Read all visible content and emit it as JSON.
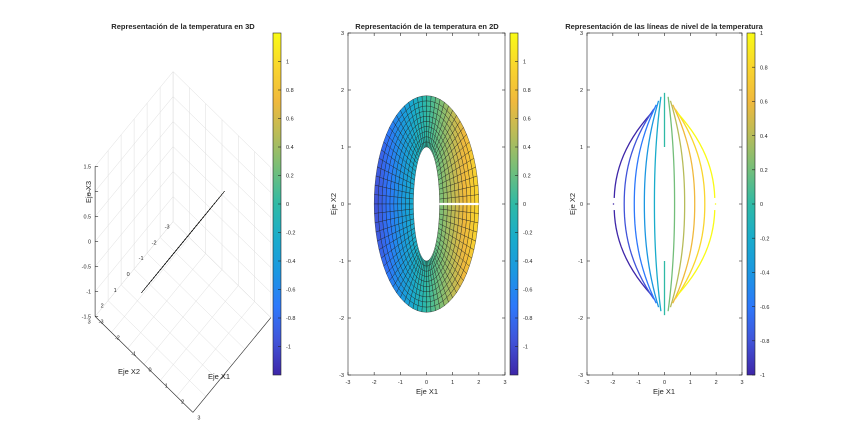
{
  "colors": {
    "axis": "#262626",
    "grid": "#dcdcdc",
    "mesh": "#1a1a1a",
    "colormap": [
      "#3e26a8",
      "#4154d9",
      "#2d78fb",
      "#1b97e1",
      "#1aaccb",
      "#2fbaa5",
      "#73be7a",
      "#b7bc59",
      "#f0b93d",
      "#f9d52e",
      "#f9fb15"
    ]
  },
  "chart_data": [
    {
      "type": "surface",
      "title": "Representación de la temperatura en 3D",
      "xlabel": "Eje X1",
      "ylabel": "Eje X2",
      "zlabel": "Eje X3",
      "x_ticks": [
        "-3",
        "-2",
        "-1",
        "0",
        "1",
        "2",
        "3"
      ],
      "y_ticks": [
        "-3",
        "-2",
        "-1",
        "0",
        "1",
        "2",
        "3"
      ],
      "z_ticks": [
        "1.5",
        "1",
        "0.5",
        "0",
        "-0.5",
        "-1",
        "-1.5"
      ],
      "annulus": {
        "inner_radius": 0.5,
        "outer_radius": 1.0,
        "semi_axis_x1": 2,
        "semi_axis_x2": 2
      },
      "colorbar": {
        "ticks": [
          "1",
          "0.8",
          "0.6",
          "0.4",
          "0.2",
          "0",
          "-0.2",
          "-0.4",
          "-0.6",
          "-0.8",
          "-1"
        ],
        "range": [
          -1.2,
          1.2
        ]
      }
    },
    {
      "type": "heatmap",
      "title": "Representación de la temperatura en 2D",
      "xlabel": "Eje X1",
      "ylabel": "Eje X2",
      "xlim": [
        -3,
        3
      ],
      "ylim": [
        -3,
        3
      ],
      "x_ticks": [
        "-3",
        "-2",
        "-1",
        "0",
        "1",
        "2",
        "3"
      ],
      "y_ticks": [
        "3",
        "2",
        "1",
        "0",
        "-1",
        "-2",
        "-3"
      ],
      "annulus": {
        "x1_inner": 0.5,
        "x1_outer": 2.0,
        "x2_inner": 1.0,
        "x2_outer": 1.9
      },
      "colorbar": {
        "ticks": [
          "1",
          "0.8",
          "0.6",
          "0.4",
          "0.2",
          "0",
          "-0.2",
          "-0.4",
          "-0.6",
          "-0.8",
          "-1"
        ],
        "range": [
          -1.2,
          1.2
        ]
      }
    },
    {
      "type": "contour",
      "title": "Representación de las líneas de nivel de la temperatura",
      "xlabel": "Eje X1",
      "ylabel": "Eje X2",
      "xlim": [
        -3,
        3
      ],
      "ylim": [
        -3,
        3
      ],
      "x_ticks": [
        "-3",
        "-2",
        "-1",
        "0",
        "1",
        "2",
        "3"
      ],
      "y_ticks": [
        "3",
        "2",
        "1",
        "0",
        "-1",
        "-2",
        "-3"
      ],
      "levels": [
        -1,
        -0.8,
        -0.6,
        -0.4,
        -0.2,
        0,
        0.2,
        0.4,
        0.6,
        0.8,
        1
      ],
      "colorbar": {
        "ticks": [
          "1",
          "0.8",
          "0.6",
          "0.4",
          "0.2",
          "0",
          "-0.2",
          "-0.4",
          "-0.6",
          "-0.8",
          "-1"
        ],
        "range": [
          -1,
          1
        ]
      }
    }
  ]
}
